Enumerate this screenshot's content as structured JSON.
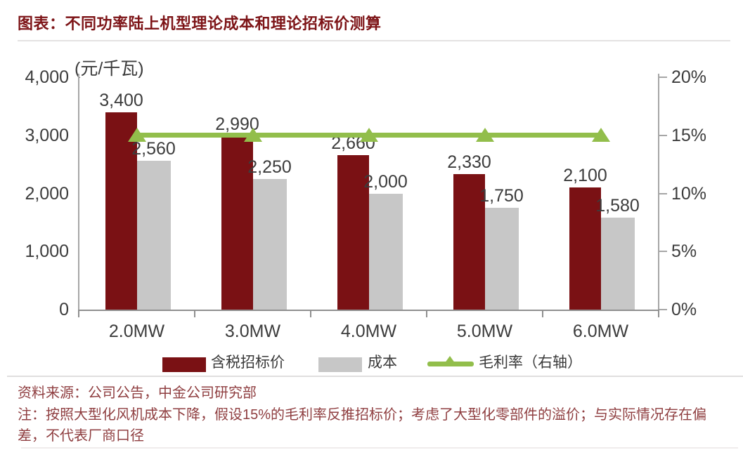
{
  "page": {
    "title": "图表：不同功率陆上机型理论成本和理论招标价测算",
    "source": "资料来源：公司公告，中金公司研究部",
    "note": "注：按照大型化风机成本下降，假设15%的毛利率反推招标价；考虑了大型化零部件的溢价；与实际情况存在偏差，不代表厂商口径"
  },
  "chart_data": {
    "type": "bar",
    "title": "不同功率陆上机型理论成本和理论招标价测算",
    "categories": [
      "2.0MW",
      "3.0MW",
      "4.0MW",
      "5.0MW",
      "6.0MW"
    ],
    "series": [
      {
        "name": "含税招标价",
        "type": "bar",
        "axis": "left",
        "color": "#7A1114",
        "values": [
          3400,
          2990,
          2660,
          2330,
          2100
        ]
      },
      {
        "name": "成本",
        "type": "bar",
        "axis": "left",
        "color": "#C7C7C7",
        "values": [
          2560,
          2250,
          2000,
          1750,
          1580
        ]
      },
      {
        "name": "毛利率（右轴）",
        "type": "line",
        "axis": "right",
        "color": "#92BE4B",
        "values": [
          15,
          15,
          15,
          15,
          15
        ],
        "unit": "%"
      }
    ],
    "left_axis": {
      "label": "(元/千瓦)",
      "min": 0,
      "max": 4000,
      "ticks": [
        4000,
        3000,
        2000,
        1000,
        0
      ]
    },
    "right_axis": {
      "min": 0,
      "max": 20,
      "ticks": [
        20,
        15,
        10,
        5,
        0
      ],
      "unit": "%"
    },
    "grid": false,
    "legend_position": "bottom"
  },
  "colors": {
    "title_text": "#7D1417",
    "footer_text": "#8F3E40",
    "axis_text": "#3C3C3C",
    "bid_bar": "#7A1114",
    "cost_bar": "#C7C7C7",
    "margin_line": "#92BE4B"
  }
}
